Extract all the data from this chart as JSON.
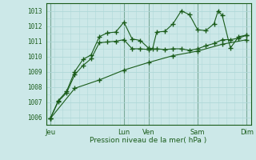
{
  "background_color": "#cce8e8",
  "plot_bg_color": "#cce8e8",
  "grid_color_minor": "#b0d8d8",
  "grid_color_major_x": "#7aaa9a",
  "line_color": "#1a5c1a",
  "xlabel": "Pression niveau de la mer( hPa )",
  "ylim": [
    1005.5,
    1013.5
  ],
  "xlim": [
    0,
    25
  ],
  "yticks": [
    1006,
    1007,
    1008,
    1009,
    1010,
    1011,
    1012,
    1013
  ],
  "day_labels": [
    "Jeu",
    "Lun",
    "Ven",
    "Sam",
    "Dim"
  ],
  "day_positions": [
    0.5,
    9.5,
    12.5,
    18.5,
    24.5
  ],
  "vlines": [
    0.5,
    9.5,
    12.5,
    18.5,
    24.5
  ],
  "line1_x": [
    0.5,
    1.5,
    2.5,
    3.5,
    4.5,
    5.5,
    6.5,
    7.5,
    8.5,
    9.5,
    10.5,
    11.5,
    12.5,
    13.0,
    13.5,
    14.5,
    15.5,
    16.5,
    17.5,
    18.5,
    19.5,
    20.5,
    21.0,
    21.5,
    22.5,
    23.5,
    24.5
  ],
  "line1_y": [
    1005.9,
    1007.1,
    1007.7,
    1009.0,
    1009.8,
    1010.1,
    1011.3,
    1011.55,
    1011.6,
    1012.25,
    1011.15,
    1011.05,
    1010.55,
    1010.5,
    1011.6,
    1011.65,
    1012.15,
    1013.0,
    1012.75,
    1011.75,
    1011.7,
    1012.15,
    1013.0,
    1012.7,
    1010.55,
    1011.3,
    1011.4
  ],
  "line2_x": [
    0.5,
    1.5,
    2.5,
    3.5,
    4.5,
    5.5,
    6.5,
    7.5,
    8.5,
    9.5,
    10.5,
    11.5,
    12.5,
    13.5,
    14.5,
    15.5,
    16.5,
    17.5,
    18.5,
    19.5,
    20.5,
    21.5,
    22.5,
    23.5,
    24.5
  ],
  "line2_y": [
    1005.9,
    1007.05,
    1007.6,
    1008.8,
    1009.4,
    1009.85,
    1010.9,
    1010.95,
    1011.0,
    1011.1,
    1010.5,
    1010.5,
    1010.45,
    1010.5,
    1010.45,
    1010.5,
    1010.5,
    1010.4,
    1010.5,
    1010.7,
    1010.85,
    1011.1,
    1011.1,
    1011.2,
    1011.4
  ],
  "line3_x": [
    0.5,
    3.5,
    6.5,
    9.5,
    12.5,
    15.5,
    18.5,
    21.5,
    24.5
  ],
  "line3_y": [
    1005.9,
    1007.9,
    1008.45,
    1009.1,
    1009.6,
    1010.05,
    1010.35,
    1010.8,
    1011.1
  ],
  "marker_size": 2.5,
  "linewidth": 0.8,
  "figsize": [
    3.2,
    2.0
  ],
  "dpi": 100
}
